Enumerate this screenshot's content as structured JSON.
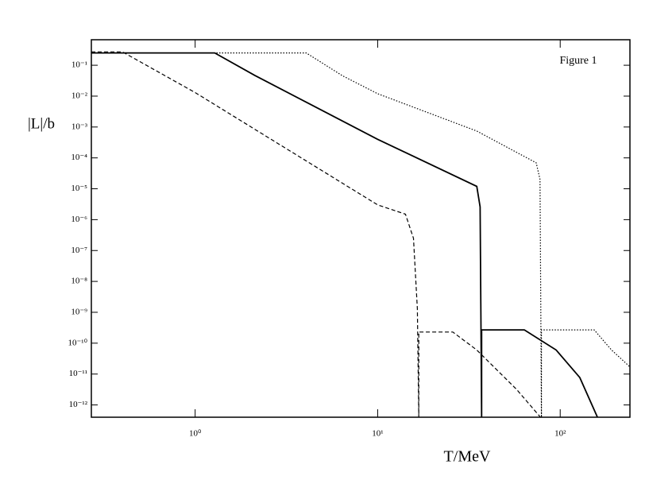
{
  "chart_data": {
    "type": "line",
    "annotation": "Figure 1",
    "y_label": "|L|/b",
    "x_label": "T/MeV",
    "log_x": true,
    "log_y": true,
    "xlim": [
      0.27,
      241
    ],
    "ylim": [
      4e-13,
      0.67
    ],
    "xticks": [
      {
        "value": 1,
        "label": "10⁰"
      },
      {
        "value": 10,
        "label": "10¹"
      },
      {
        "value": 100,
        "label": "10²"
      }
    ],
    "yticks": [
      {
        "value": 0.1,
        "label": "10⁻¹"
      },
      {
        "value": 0.01,
        "label": "10⁻²"
      },
      {
        "value": 0.001,
        "label": "10⁻³"
      },
      {
        "value": 0.0001,
        "label": "10⁻⁴"
      },
      {
        "value": 1e-05,
        "label": "10⁻⁵"
      },
      {
        "value": 1e-06,
        "label": "10⁻⁶"
      },
      {
        "value": 1e-07,
        "label": "10⁻⁷"
      },
      {
        "value": 1e-08,
        "label": "10⁻⁸"
      },
      {
        "value": 1e-09,
        "label": "10⁻⁹"
      },
      {
        "value": 1e-10,
        "label": "10⁻¹⁰"
      },
      {
        "value": 1e-11,
        "label": "10⁻¹¹"
      },
      {
        "value": 1e-12,
        "label": "10⁻¹²"
      }
    ],
    "series": [
      {
        "color": "#000000",
        "dash": "dashed",
        "x": [
          0.27,
          0.4,
          1,
          10,
          14.2,
          15.7,
          16.5,
          16.8,
          16.8,
          25.8,
          34.9,
          57.6,
          78
        ],
        "values": [
          0.27,
          0.27,
          0.013,
          3e-06,
          1.5e-06,
          2.5e-07,
          1.3e-09,
          4e-13,
          2.3e-10,
          2.3e-10,
          6e-11,
          3.2e-12,
          4e-13
        ]
      },
      {
        "color": "#000000",
        "dash": "solid",
        "x": [
          0.27,
          1.28,
          2.12,
          10,
          34.9,
          36.4,
          37.1,
          37.1,
          63.6,
          95,
          128,
          160
        ],
        "values": [
          0.25,
          0.25,
          0.047,
          0.0004,
          1.2e-05,
          2.6e-06,
          4e-13,
          2.7e-10,
          2.7e-10,
          6e-11,
          7.7e-12,
          4e-13
        ]
      },
      {
        "color": "#000000",
        "dash": "dotted",
        "x": [
          0.27,
          4.06,
          6.4,
          10,
          34.9,
          73.9,
          77.5,
          78.9,
          78.9,
          153.6,
          191,
          241
        ],
        "values": [
          0.25,
          0.25,
          0.046,
          0.012,
          0.00074,
          6.9e-05,
          2e-05,
          4e-13,
          2.7e-10,
          2.7e-10,
          6e-11,
          1.7e-11
        ]
      }
    ]
  }
}
